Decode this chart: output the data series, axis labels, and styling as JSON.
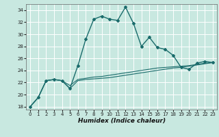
{
  "title": "",
  "xlabel": "Humidex (Indice chaleur)",
  "bg_color": "#c8e8e0",
  "grid_color": "#ffffff",
  "line_color": "#1a6b6b",
  "xlim": [
    -0.5,
    23.5
  ],
  "ylim": [
    17.5,
    35.0
  ],
  "xticks": [
    0,
    1,
    2,
    3,
    4,
    5,
    6,
    7,
    8,
    9,
    10,
    11,
    12,
    13,
    14,
    15,
    16,
    17,
    18,
    19,
    20,
    21,
    22,
    23
  ],
  "yticks": [
    18,
    20,
    22,
    24,
    26,
    28,
    30,
    32,
    34
  ],
  "line1_x": [
    0,
    1,
    2,
    3,
    4,
    5,
    6,
    7,
    8,
    9,
    10,
    11,
    12,
    13,
    14,
    15,
    16,
    17,
    18,
    19,
    20,
    21,
    22,
    23
  ],
  "line1_y": [
    18.0,
    19.5,
    22.3,
    22.5,
    22.3,
    21.0,
    24.8,
    29.2,
    32.5,
    33.0,
    32.5,
    32.3,
    34.5,
    31.8,
    28.0,
    29.5,
    27.8,
    27.5,
    26.5,
    24.5,
    24.2,
    25.2,
    25.5,
    25.3
  ],
  "line2_x": [
    0,
    1,
    2,
    3,
    4,
    5,
    6,
    7,
    8,
    9,
    10,
    11,
    12,
    13,
    14,
    15,
    16,
    17,
    18,
    19,
    20,
    21,
    22,
    23
  ],
  "line2_y": [
    18.0,
    19.5,
    22.3,
    22.5,
    22.3,
    21.0,
    22.3,
    22.5,
    22.6,
    22.7,
    22.8,
    23.0,
    23.2,
    23.4,
    23.6,
    23.8,
    24.0,
    24.2,
    24.4,
    24.5,
    24.7,
    24.9,
    25.1,
    25.3
  ],
  "line3_x": [
    0,
    1,
    2,
    3,
    4,
    5,
    6,
    7,
    8,
    9,
    10,
    11,
    12,
    13,
    14,
    15,
    16,
    17,
    18,
    19,
    20,
    21,
    22,
    23
  ],
  "line3_y": [
    18.0,
    19.5,
    22.3,
    22.5,
    22.3,
    21.5,
    22.5,
    22.7,
    22.9,
    23.0,
    23.2,
    23.4,
    23.6,
    23.8,
    24.0,
    24.2,
    24.4,
    24.5,
    24.6,
    24.7,
    24.8,
    25.0,
    25.2,
    25.3
  ],
  "xlabel_fontsize": 6.5,
  "tick_fontsize": 5.0,
  "marker": "D",
  "markersize": 2.0,
  "linewidth1": 1.0,
  "linewidth2": 0.8
}
